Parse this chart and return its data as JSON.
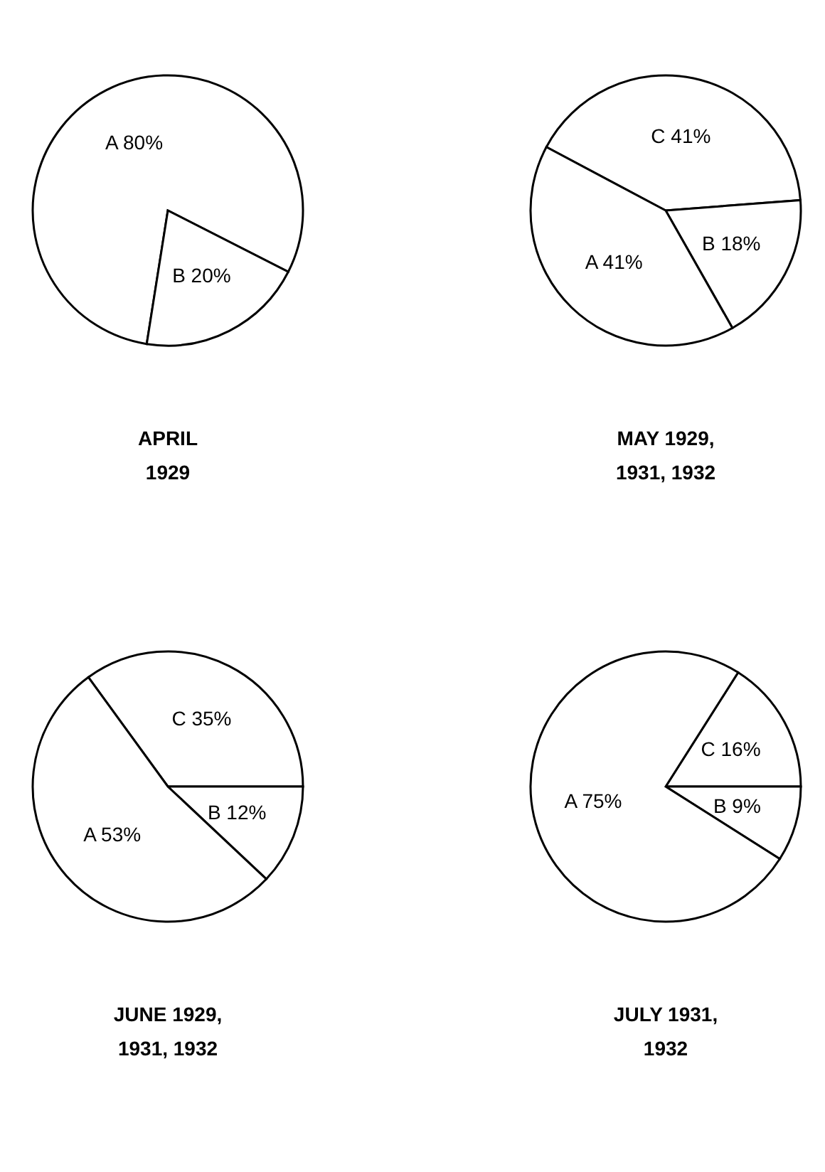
{
  "chart_data": [
    {
      "type": "pie",
      "title": "APRIL\n1929",
      "categories": [
        "A",
        "B"
      ],
      "values": [
        80,
        20
      ],
      "colors": [
        "#ffffff",
        "#ffffff"
      ],
      "value_labels": [
        "80%",
        "20%"
      ]
    },
    {
      "type": "pie",
      "title": "MAY 1929,\n1931, 1932",
      "categories": [
        "C",
        "B",
        "A"
      ],
      "values": [
        41,
        18,
        41
      ],
      "colors": [
        "#ffffff",
        "#ffffff",
        "#ffffff"
      ],
      "value_labels": [
        "41%",
        "18%",
        "41%"
      ]
    },
    {
      "type": "pie",
      "title": "JUNE 1929,\n1931, 1932",
      "categories": [
        "C",
        "B",
        "A"
      ],
      "values": [
        35,
        12,
        53
      ],
      "colors": [
        "#ffffff",
        "#ffffff",
        "#ffffff"
      ],
      "value_labels": [
        "35%",
        "12%",
        "53%"
      ]
    },
    {
      "type": "pie",
      "title": "JULY 1931,\n1932",
      "categories": [
        "C",
        "B",
        "A"
      ],
      "values": [
        16,
        9,
        75
      ],
      "colors": [
        "#ffffff",
        "#ffffff",
        "#ffffff"
      ],
      "value_labels": [
        "16%",
        "9%",
        "75%"
      ]
    }
  ]
}
